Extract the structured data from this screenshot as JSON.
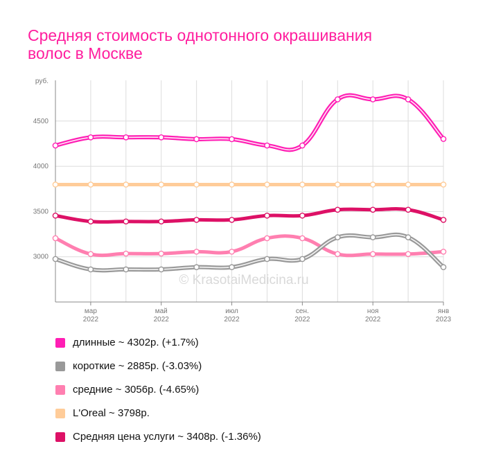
{
  "title_lines": [
    "Средняя стоимость однотонного окрашивания",
    "волос в Москве"
  ],
  "watermark": "© KrasotaiMedicina.ru",
  "chart_data": {
    "type": "line",
    "ylabel": "руб.",
    "ylim": [
      2500,
      4950
    ],
    "yticks": [
      3000,
      3500,
      4000,
      4500
    ],
    "x": [
      "2022-02",
      "2022-03",
      "2022-04",
      "2022-05",
      "2022-06",
      "2022-07",
      "2022-08",
      "2022-09",
      "2022-10",
      "2022-11",
      "2022-12",
      "2023-01"
    ],
    "xtick_labels": [
      {
        "month": "мар",
        "year": "2022",
        "x": "2022-03"
      },
      {
        "month": "май",
        "year": "2022",
        "x": "2022-05"
      },
      {
        "month": "июл",
        "year": "2022",
        "x": "2022-07"
      },
      {
        "month": "сен.",
        "year": "2022",
        "x": "2022-09"
      },
      {
        "month": "ноя",
        "year": "2022",
        "x": "2022-11"
      },
      {
        "month": "янв",
        "year": "2023",
        "x": "2023-01"
      }
    ],
    "grid": true,
    "legend_position": "bottom",
    "series": [
      {
        "id": "dlinnye",
        "color": "#ff1eb4",
        "style": "double",
        "values": [
          4230,
          4320,
          4320,
          4320,
          4300,
          4300,
          4230,
          4230,
          4740,
          4740,
          4740,
          4302
        ]
      },
      {
        "id": "korotkie",
        "color": "#999999",
        "style": "double",
        "values": [
          2975,
          2860,
          2860,
          2860,
          2885,
          2885,
          2975,
          2975,
          3215,
          3215,
          3215,
          2885
        ]
      },
      {
        "id": "srednie",
        "color": "#ff7fb0",
        "style": "single",
        "values": [
          3205,
          3030,
          3035,
          3035,
          3056,
          3056,
          3205,
          3205,
          3030,
          3030,
          3030,
          3056
        ]
      },
      {
        "id": "loreal",
        "color": "#ffcc99",
        "style": "single",
        "values": [
          3798,
          3798,
          3798,
          3798,
          3798,
          3798,
          3798,
          3798,
          3798,
          3798,
          3798,
          3798
        ]
      },
      {
        "id": "srednyaya",
        "color": "#dd1166",
        "style": "single",
        "values": [
          3455,
          3390,
          3390,
          3390,
          3408,
          3408,
          3455,
          3455,
          3520,
          3520,
          3520,
          3408
        ]
      }
    ]
  },
  "legend": [
    {
      "label": "длинные ~ 4302р. (+1.7%)",
      "color": "#ff1eb4"
    },
    {
      "label": "короткие ~ 2885р. (-3.03%)",
      "color": "#999999"
    },
    {
      "label": "средние ~ 3056р. (-4.65%)",
      "color": "#ff7fb0"
    },
    {
      "label": "L'Oreal ~ 3798р.",
      "color": "#ffcc99"
    },
    {
      "label": "Средняя цена услуги ~ 3408р. (-1.36%)",
      "color": "#dd1166"
    }
  ]
}
